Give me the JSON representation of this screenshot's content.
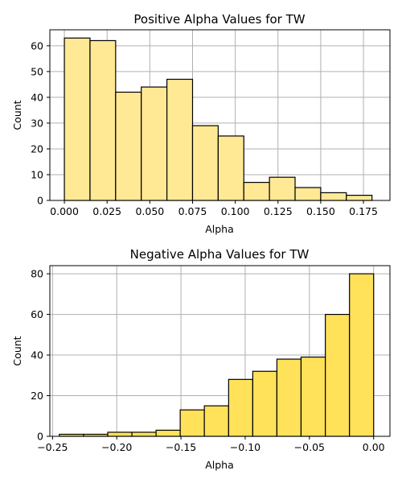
{
  "chart_data": [
    {
      "type": "bar",
      "title": "Positive Alpha Values for TW",
      "xlabel": "Alpha",
      "ylabel": "Count",
      "bar_color": "#ffe994",
      "xlim": [
        -0.0085,
        0.1905
      ],
      "ylim": [
        0,
        66.2
      ],
      "xticks": [
        0.0,
        0.025,
        0.05,
        0.075,
        0.1,
        0.125,
        0.15,
        0.175
      ],
      "xtick_labels": [
        "0.000",
        "0.025",
        "0.050",
        "0.075",
        "0.100",
        "0.125",
        "0.150",
        "0.175"
      ],
      "yticks": [
        0,
        10,
        20,
        30,
        40,
        50,
        60
      ],
      "ytick_labels": [
        "0",
        "10",
        "20",
        "30",
        "40",
        "50",
        "60"
      ],
      "grid": true,
      "bins": [
        {
          "x0": 0.0,
          "x1": 0.015,
          "count": 63
        },
        {
          "x0": 0.015,
          "x1": 0.03,
          "count": 62
        },
        {
          "x0": 0.03,
          "x1": 0.045,
          "count": 42
        },
        {
          "x0": 0.045,
          "x1": 0.06,
          "count": 44
        },
        {
          "x0": 0.06,
          "x1": 0.075,
          "count": 47
        },
        {
          "x0": 0.075,
          "x1": 0.09,
          "count": 29
        },
        {
          "x0": 0.09,
          "x1": 0.105,
          "count": 25
        },
        {
          "x0": 0.105,
          "x1": 0.12,
          "count": 7
        },
        {
          "x0": 0.12,
          "x1": 0.135,
          "count": 9
        },
        {
          "x0": 0.135,
          "x1": 0.15,
          "count": 5
        },
        {
          "x0": 0.15,
          "x1": 0.165,
          "count": 3
        },
        {
          "x0": 0.165,
          "x1": 0.18,
          "count": 2
        }
      ]
    },
    {
      "type": "bar",
      "title": "Negative Alpha Values for TW",
      "xlabel": "Alpha",
      "ylabel": "Count",
      "bar_color": "#ffe15a",
      "xlim": [
        -0.2521,
        0.0127
      ],
      "ylim": [
        0,
        84
      ],
      "xticks": [
        -0.25,
        -0.2,
        -0.15,
        -0.1,
        -0.05,
        0.0
      ],
      "xtick_labels": [
        "−0.25",
        "−0.20",
        "−0.15",
        "−0.10",
        "−0.05",
        "0.00"
      ],
      "yticks": [
        0,
        20,
        40,
        60,
        80
      ],
      "ytick_labels": [
        "0",
        "20",
        "40",
        "60",
        "80"
      ],
      "grid": true,
      "bins": [
        {
          "x0": -0.2447,
          "x1": -0.2258,
          "count": 1
        },
        {
          "x0": -0.2258,
          "x1": -0.207,
          "count": 1
        },
        {
          "x0": -0.207,
          "x1": -0.1882,
          "count": 2
        },
        {
          "x0": -0.1882,
          "x1": -0.1694,
          "count": 2
        },
        {
          "x0": -0.1694,
          "x1": -0.1506,
          "count": 3
        },
        {
          "x0": -0.1506,
          "x1": -0.1318,
          "count": 13
        },
        {
          "x0": -0.1318,
          "x1": -0.1129,
          "count": 15
        },
        {
          "x0": -0.1129,
          "x1": -0.0941,
          "count": 28
        },
        {
          "x0": -0.0941,
          "x1": -0.0753,
          "count": 32
        },
        {
          "x0": -0.0753,
          "x1": -0.0565,
          "count": 38
        },
        {
          "x0": -0.0565,
          "x1": -0.0376,
          "count": 39
        },
        {
          "x0": -0.0376,
          "x1": -0.0188,
          "count": 60
        },
        {
          "x0": -0.0188,
          "x1": 0.0,
          "count": 80
        }
      ]
    }
  ]
}
